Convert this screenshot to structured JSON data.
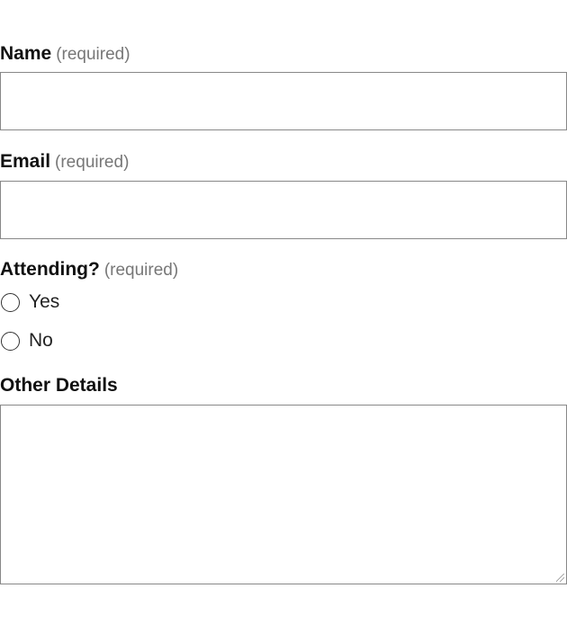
{
  "form": {
    "name": {
      "label": "Name",
      "required": "(required)",
      "value": ""
    },
    "email": {
      "label": "Email",
      "required": "(required)",
      "value": ""
    },
    "attending": {
      "label": "Attending?",
      "required": "(required)",
      "options": [
        {
          "label": "Yes",
          "checked": false
        },
        {
          "label": "No",
          "checked": false
        }
      ]
    },
    "details": {
      "label": "Other Details",
      "value": ""
    }
  }
}
